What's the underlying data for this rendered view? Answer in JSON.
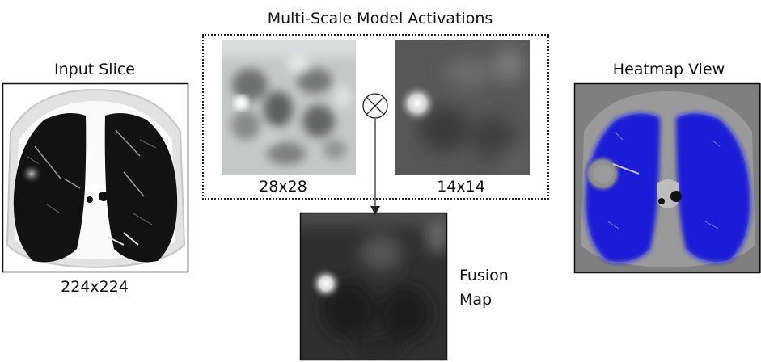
{
  "input": {
    "title": "Input Slice",
    "size_label": "224x224"
  },
  "activations": {
    "title": "Multi-Scale Model Activations",
    "left_label": "28x28",
    "right_label": "14x14",
    "operator_symbol": "⊗"
  },
  "fusion": {
    "label_line1": "Fusion",
    "label_line2": "Map"
  },
  "heatmap": {
    "title": "Heatmap View"
  },
  "colors": {
    "lung_blue": "#1a1fd6",
    "lesion_gray": "#8c8c8c",
    "border": "#111111"
  }
}
